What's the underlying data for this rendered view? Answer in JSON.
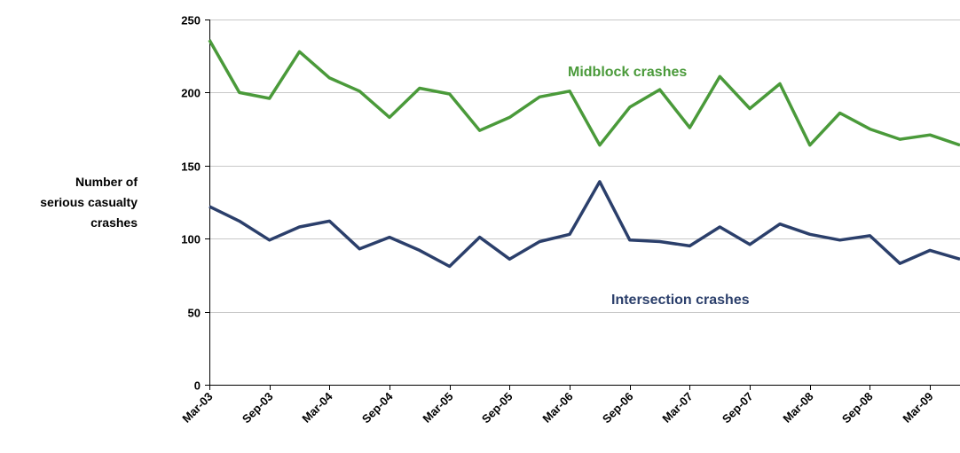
{
  "chart_data": {
    "type": "line",
    "title": "",
    "xlabel": "",
    "ylabel": [
      "Number of",
      "serious casualty",
      "crashes"
    ],
    "ylim": [
      0,
      250
    ],
    "yticks": [
      0,
      50,
      100,
      150,
      200,
      250
    ],
    "grid": true,
    "x": [
      "Mar-03",
      "Jun-03",
      "Sep-03",
      "Dec-03",
      "Mar-04",
      "Jun-04",
      "Sep-04",
      "Dec-04",
      "Mar-05",
      "Jun-05",
      "Sep-05",
      "Dec-05",
      "Mar-06",
      "Jun-06",
      "Sep-06",
      "Dec-06",
      "Mar-07",
      "Jun-07",
      "Sep-07",
      "Dec-07",
      "Mar-08",
      "Jun-08",
      "Sep-08",
      "Dec-08",
      "Mar-09",
      "Jun-09"
    ],
    "xtick_labels": [
      "Mar-03",
      "Sep-03",
      "Mar-04",
      "Sep-04",
      "Mar-05",
      "Sep-05",
      "Mar-06",
      "Sep-06",
      "Mar-07",
      "Sep-07",
      "Mar-08",
      "Sep-08",
      "Mar-09"
    ],
    "series": [
      {
        "name": "Midblock crashes",
        "color": "#4a9a3a",
        "values": [
          236,
          200,
          196,
          228,
          210,
          201,
          183,
          203,
          199,
          174,
          183,
          197,
          201,
          164,
          190,
          202,
          176,
          211,
          189,
          206,
          164,
          186,
          175,
          168,
          171,
          164
        ]
      },
      {
        "name": "Intersection crashes",
        "color": "#2b3f6b",
        "values": [
          122,
          112,
          99,
          108,
          112,
          93,
          101,
          92,
          81,
          101,
          86,
          98,
          103,
          139,
          99,
          98,
          95,
          108,
          96,
          110,
          103,
          99,
          102,
          83,
          92,
          86
        ]
      }
    ]
  }
}
